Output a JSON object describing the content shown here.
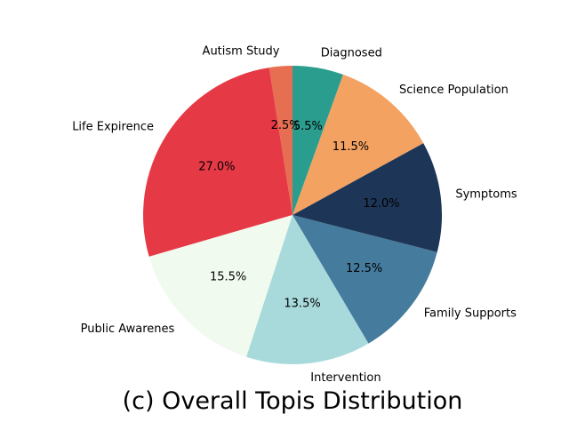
{
  "chart_data": {
    "type": "pie",
    "title": "(c) Overall Topis Distribution",
    "start_angle_deg": 90,
    "direction": "counterclockwise",
    "slices": [
      {
        "label": "Autism Study",
        "value": 2.5,
        "pct_text": "2.5%",
        "color": "#e76f51"
      },
      {
        "label": "Life Expirence",
        "value": 27.0,
        "pct_text": "27.0%",
        "color": "#e63946"
      },
      {
        "label": "Public Awarenes",
        "value": 15.5,
        "pct_text": "15.5%",
        "color": "#f1faee"
      },
      {
        "label": "Intervention",
        "value": 13.5,
        "pct_text": "13.5%",
        "color": "#a8dadc"
      },
      {
        "label": "Family Supports",
        "value": 12.5,
        "pct_text": "12.5%",
        "color": "#457b9d"
      },
      {
        "label": "Symptoms",
        "value": 12.0,
        "pct_text": "12.0%",
        "color": "#1d3557"
      },
      {
        "label": "Science Population",
        "value": 11.5,
        "pct_text": "11.5%",
        "color": "#f4a261"
      },
      {
        "label": "Diagnosed",
        "value": 5.5,
        "pct_text": "5.5%",
        "color": "#2a9d8f"
      }
    ]
  }
}
